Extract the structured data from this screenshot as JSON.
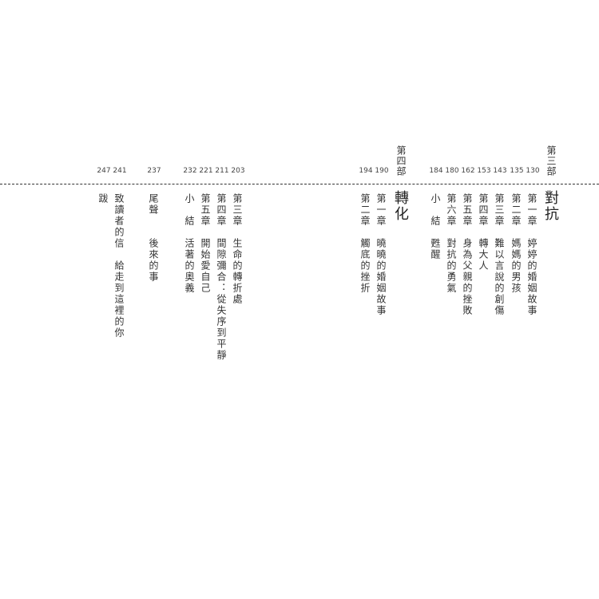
{
  "parts": [
    {
      "heading": "第三部",
      "title": "對抗"
    },
    {
      "heading": "第四部",
      "title": "轉化"
    }
  ],
  "entries": [
    {
      "label": "第一章",
      "title": "婷婷的婚姻故事",
      "page": "130"
    },
    {
      "label": "第二章",
      "title": "媽媽的男孩",
      "page": "135"
    },
    {
      "label": "第三章",
      "title": "難以言說的創傷",
      "page": "143"
    },
    {
      "label": "第四章",
      "title": "轉大人",
      "page": "153"
    },
    {
      "label": "第五章",
      "title": "身為父親的挫敗",
      "page": "162"
    },
    {
      "label": "第六章",
      "title": "對抗的勇氣",
      "page": "180"
    },
    {
      "label": "小　結",
      "title": "甦醒",
      "page": "184"
    },
    {
      "label": "第一章",
      "title": "曉曉的婚姻故事",
      "page": "190"
    },
    {
      "label": "第二章",
      "title": "觸底的挫折",
      "page": "194"
    },
    {
      "label": "第三章",
      "title": "生命的轉折處",
      "page": "203"
    },
    {
      "label": "第四章",
      "title": "間隙彌合：從失序到平靜",
      "page": "211"
    },
    {
      "label": "第五章",
      "title": "開始愛自己",
      "page": "221"
    },
    {
      "label": "小　結",
      "title": "活著的奧義",
      "page": "232"
    },
    {
      "label": "尾聲",
      "title": "後來的事",
      "page": "237"
    },
    {
      "label": "致讀者的信",
      "title": "給走到這裡的你",
      "page": "241"
    },
    {
      "label": "跋",
      "title": "",
      "page": "247"
    }
  ]
}
